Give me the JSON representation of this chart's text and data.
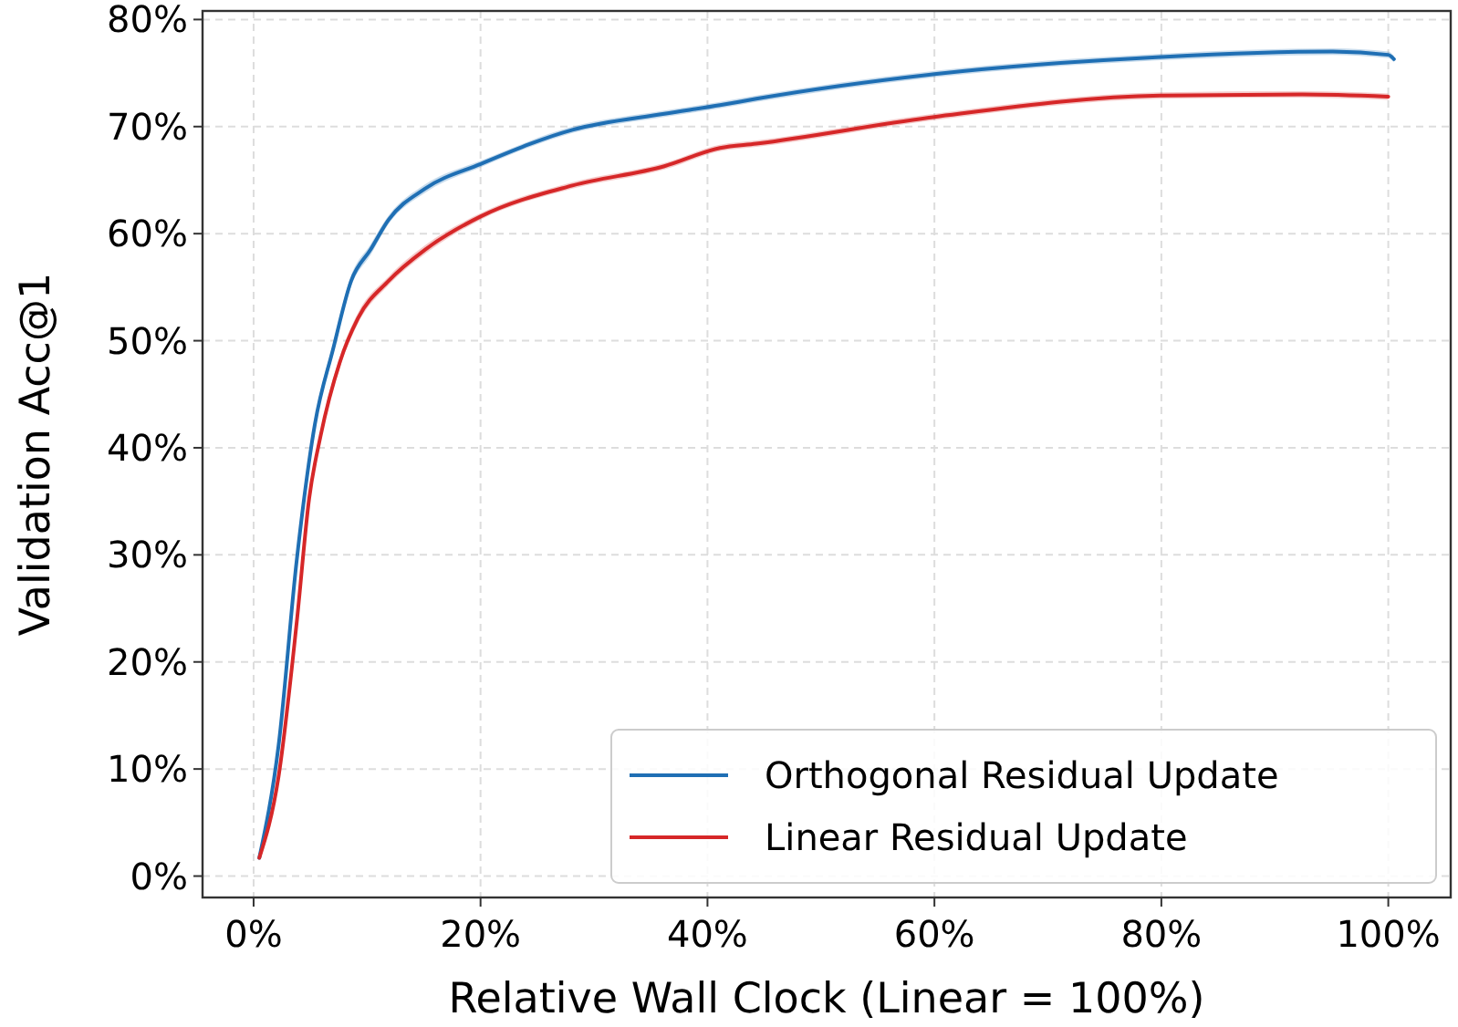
{
  "chart_data": {
    "type": "line",
    "xlabel": "Relative Wall Clock (Linear = 100%)",
    "ylabel": "Validation Acc@1",
    "xlim": [
      -4.5,
      105.5
    ],
    "ylim": [
      -2,
      80.8
    ],
    "xticks": [
      {
        "value": 0,
        "label": "0%"
      },
      {
        "value": 20,
        "label": "20%"
      },
      {
        "value": 40,
        "label": "40%"
      },
      {
        "value": 60,
        "label": "60%"
      },
      {
        "value": 80,
        "label": "80%"
      },
      {
        "value": 100,
        "label": "100%"
      }
    ],
    "yticks": [
      {
        "value": 0,
        "label": "0%"
      },
      {
        "value": 10,
        "label": "10%"
      },
      {
        "value": 20,
        "label": "20%"
      },
      {
        "value": 30,
        "label": "30%"
      },
      {
        "value": 40,
        "label": "40%"
      },
      {
        "value": 50,
        "label": "50%"
      },
      {
        "value": 60,
        "label": "60%"
      },
      {
        "value": 70,
        "label": "70%"
      },
      {
        "value": 80,
        "label": "80%"
      }
    ],
    "grid": true,
    "legend": "bottom right",
    "line_style": "solid",
    "marker": "none",
    "series": [
      {
        "name": "Orthogonal Residual Update",
        "color": "#1f6fb4",
        "x": [
          0.5,
          2.2,
          3.8,
          5.4,
          7.0,
          8.6,
          10.3,
          11.9,
          15.1,
          20,
          28.1,
          36.2,
          41.1,
          44.3,
          60,
          80,
          95.1,
          100,
          100.5
        ],
        "values": [
          1.7,
          12.2,
          29.5,
          42.2,
          49.2,
          55.6,
          58.5,
          61.3,
          64.2,
          66.5,
          69.7,
          71.2,
          72.0,
          72.6,
          74.9,
          76.5,
          77.0,
          76.7,
          76.3
        ],
        "lower": [
          1.5,
          11.8,
          29.0,
          41.7,
          48.7,
          55.1,
          58.0,
          60.9,
          63.8,
          66.2,
          69.4,
          70.9,
          71.7,
          72.3,
          74.6,
          76.2,
          76.7,
          76.4,
          76.0
        ],
        "upper": [
          1.9,
          12.6,
          30.0,
          42.7,
          49.7,
          56.1,
          59.0,
          61.7,
          64.6,
          66.8,
          70.0,
          71.5,
          72.3,
          72.9,
          75.2,
          76.8,
          77.3,
          77.0,
          76.6
        ]
      },
      {
        "name": "Linear Residual Update",
        "color": "#d62728",
        "x": [
          0.5,
          2.2,
          3.8,
          4.9,
          5.9,
          7.6,
          9.2,
          11.9,
          15.1,
          20,
          28.1,
          36.2,
          41.1,
          44.3,
          60,
          80,
          92.4,
          100
        ],
        "values": [
          1.7,
          9.3,
          23.7,
          35.3,
          41.1,
          48.0,
          52.1,
          55.6,
          58.5,
          61.6,
          64.5,
          66.3,
          68.0,
          68.4,
          70.9,
          72.9,
          73.0,
          72.8
        ],
        "lower": [
          1.5,
          8.9,
          23.2,
          34.8,
          40.6,
          47.5,
          51.6,
          55.2,
          58.1,
          61.3,
          64.2,
          66.0,
          67.7,
          68.1,
          70.6,
          72.6,
          72.7,
          72.5
        ],
        "upper": [
          1.9,
          9.7,
          24.2,
          35.8,
          41.6,
          48.5,
          52.6,
          56.0,
          58.9,
          61.9,
          64.8,
          66.6,
          68.3,
          68.7,
          71.2,
          73.2,
          73.3,
          73.1
        ]
      }
    ]
  }
}
